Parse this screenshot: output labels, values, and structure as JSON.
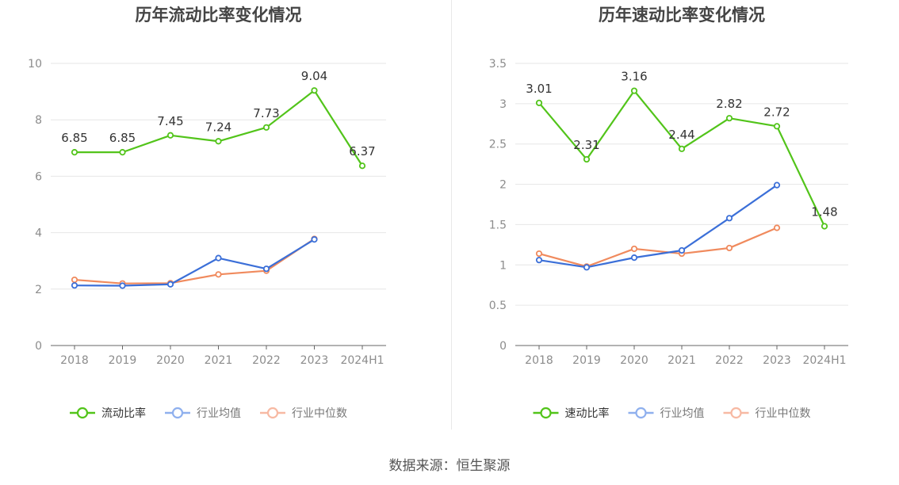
{
  "source_text": "数据来源：恒生聚源",
  "colors": {
    "main": "#52c41a",
    "avg": "#3b6fd8",
    "median": "#f08a5d",
    "avg_legend": "#8fb0ee",
    "median_legend": "#f7b9a3",
    "grid": "#e6e6e6",
    "axis": "#666666",
    "tick_text": "#8c8c8c",
    "title": "#444444",
    "label": "#333333"
  },
  "chart_data": [
    {
      "type": "line",
      "title": "历年流动比率变化情况",
      "categories": [
        "2018",
        "2019",
        "2020",
        "2021",
        "2022",
        "2023",
        "2024H1"
      ],
      "ylim": [
        0,
        10
      ],
      "yticks": [
        0,
        2,
        4,
        6,
        8,
        10
      ],
      "ytick_labels": [
        "0",
        "2",
        "4",
        "6",
        "8",
        "10"
      ],
      "grid": true,
      "legend_position": "bottom",
      "series": [
        {
          "name": "流动比率",
          "values": [
            6.85,
            6.85,
            7.45,
            7.24,
            7.73,
            9.04,
            6.37
          ],
          "labels": [
            "6.85",
            "6.85",
            "7.45",
            "7.24",
            "7.73",
            "9.04",
            "6.37"
          ]
        },
        {
          "name": "行业均值",
          "values": [
            2.13,
            2.12,
            2.17,
            3.1,
            2.72,
            3.76,
            null
          ]
        },
        {
          "name": "行业中位数",
          "values": [
            2.33,
            2.2,
            2.21,
            2.52,
            2.65,
            3.78,
            null
          ]
        }
      ]
    },
    {
      "type": "line",
      "title": "历年速动比率变化情况",
      "categories": [
        "2018",
        "2019",
        "2020",
        "2021",
        "2022",
        "2023",
        "2024H1"
      ],
      "ylim": [
        0,
        3.5
      ],
      "yticks": [
        0,
        0.5,
        1,
        1.5,
        2,
        2.5,
        3,
        3.5
      ],
      "ytick_labels": [
        "0",
        "0.5",
        "1",
        "1.5",
        "2",
        "2.5",
        "3",
        "3.5"
      ],
      "grid": true,
      "legend_position": "bottom",
      "series": [
        {
          "name": "速动比率",
          "values": [
            3.01,
            2.31,
            3.16,
            2.44,
            2.82,
            2.72,
            1.48
          ],
          "labels": [
            "3.01",
            "2.31",
            "3.16",
            "2.44",
            "2.82",
            "2.72",
            "1.48"
          ]
        },
        {
          "name": "行业均值",
          "values": [
            1.06,
            0.97,
            1.09,
            1.18,
            1.58,
            1.99,
            null
          ]
        },
        {
          "name": "行业中位数",
          "values": [
            1.14,
            0.98,
            1.2,
            1.14,
            1.21,
            1.46,
            null
          ]
        }
      ]
    }
  ]
}
